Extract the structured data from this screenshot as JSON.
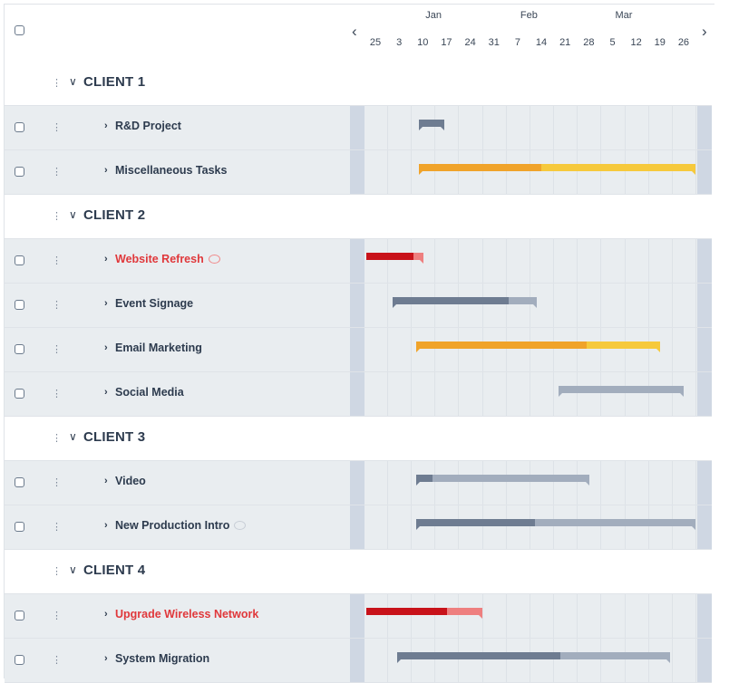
{
  "timeline": {
    "months": [
      {
        "label": "Jan",
        "week_index": 2
      },
      {
        "label": "Feb",
        "week_index": 6
      },
      {
        "label": "Mar",
        "week_index": 10
      }
    ],
    "weeks": [
      "25",
      "3",
      "10",
      "17",
      "24",
      "31",
      "7",
      "14",
      "21",
      "28",
      "5",
      "12",
      "19",
      "26"
    ],
    "prev_icon": "chevron-left-icon",
    "next_icon": "chevron-right-icon"
  },
  "colors": {
    "slate": "#6e7c91",
    "slate_light": "#a2adbd",
    "orange": "#f0a32a",
    "yellow": "#f6c93c",
    "red": "#c8121a",
    "red_light": "#ee7f7f"
  },
  "groups": [
    {
      "label": "CLIENT 1",
      "tasks": [
        {
          "label": "R&D Project",
          "alert": false,
          "comment": "",
          "bar": {
            "start": 2.2,
            "split": 3.3,
            "end": 3.3,
            "done": "slate",
            "rest": "slate_light"
          }
        },
        {
          "label": "Miscellaneous Tasks",
          "alert": false,
          "comment": "",
          "bar": {
            "start": 2.2,
            "split": 7.4,
            "end": 13.9,
            "done": "orange",
            "rest": "yellow"
          }
        }
      ]
    },
    {
      "label": "CLIENT 2",
      "tasks": [
        {
          "label": "Website Refresh",
          "alert": true,
          "comment": "red",
          "bar": {
            "start": 0,
            "split": 2.0,
            "end": 2.4,
            "done": "red",
            "rest": "red_light"
          }
        },
        {
          "label": "Event Signage",
          "alert": false,
          "comment": "",
          "bar": {
            "start": 1.1,
            "split": 6.0,
            "end": 7.2,
            "done": "slate",
            "rest": "slate_light"
          }
        },
        {
          "label": "Email Marketing",
          "alert": false,
          "comment": "",
          "bar": {
            "start": 2.1,
            "split": 9.3,
            "end": 12.4,
            "done": "orange",
            "rest": "yellow"
          }
        },
        {
          "label": "Social Media",
          "alert": false,
          "comment": "",
          "bar": {
            "start": 8.1,
            "split": 8.1,
            "end": 13.4,
            "done": "slate",
            "rest": "slate_light"
          }
        }
      ]
    },
    {
      "label": "CLIENT 3",
      "tasks": [
        {
          "label": "Video",
          "alert": false,
          "comment": "",
          "bar": {
            "start": 2.1,
            "split": 2.8,
            "end": 9.4,
            "done": "slate",
            "rest": "slate_light"
          }
        },
        {
          "label": "New Production Intro",
          "alert": false,
          "comment": "grey",
          "bar": {
            "start": 2.1,
            "split": 7.1,
            "end": 13.9,
            "done": "slate",
            "rest": "slate_light"
          }
        }
      ]
    },
    {
      "label": "CLIENT 4",
      "tasks": [
        {
          "label": "Upgrade Wireless Network",
          "alert": true,
          "comment": "",
          "bar": {
            "start": 0,
            "split": 3.4,
            "end": 4.9,
            "done": "red",
            "rest": "red_light"
          }
        },
        {
          "label": "System Migration",
          "alert": false,
          "comment": "",
          "bar": {
            "start": 1.3,
            "split": 8.2,
            "end": 12.8,
            "done": "slate",
            "rest": "slate_light"
          }
        }
      ]
    }
  ]
}
